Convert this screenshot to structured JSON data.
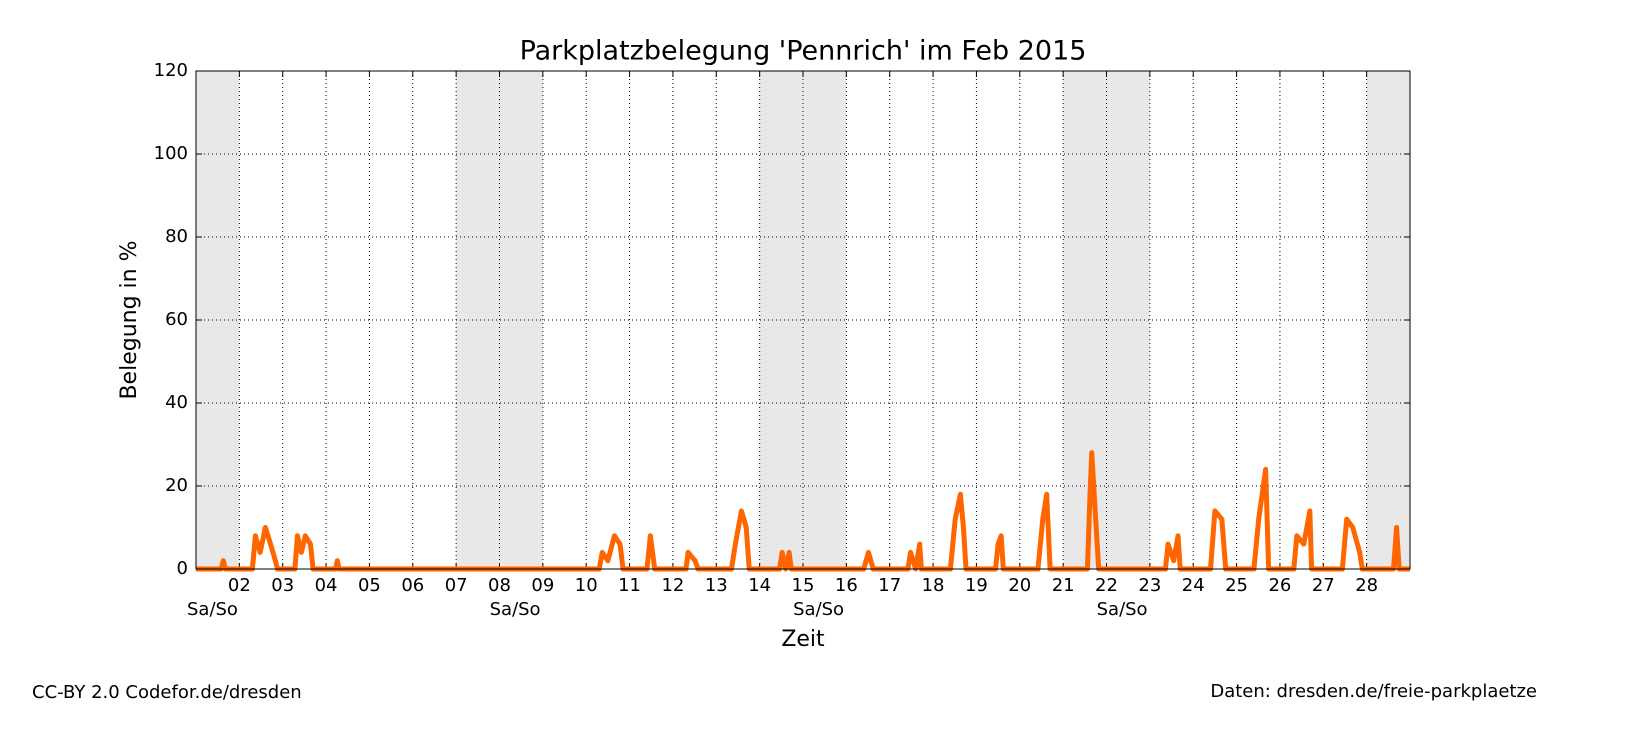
{
  "chart_data": {
    "type": "line",
    "title": "Parkplatzbelegung 'Pennrich' im Feb 2015",
    "xlabel": "Zeit",
    "ylabel": "Belegung in %",
    "footer_left": "CC-BY 2.0 Codefor.de/dresden",
    "footer_right": "Daten: dresden.de/freie-parkplaetze",
    "xlim": [
      1,
      29
    ],
    "ylim": [
      0,
      120
    ],
    "yticks": [
      0,
      20,
      40,
      60,
      80,
      100,
      120
    ],
    "xticks": [
      {
        "value": 2,
        "label": "02"
      },
      {
        "value": 3,
        "label": "03"
      },
      {
        "value": 4,
        "label": "04"
      },
      {
        "value": 5,
        "label": "05"
      },
      {
        "value": 6,
        "label": "06"
      },
      {
        "value": 7,
        "label": "07"
      },
      {
        "value": 8,
        "label": "08"
      },
      {
        "value": 9,
        "label": "09"
      },
      10,
      11,
      12,
      13,
      14,
      15,
      16,
      17,
      18,
      19,
      20,
      21,
      22,
      23,
      24,
      25,
      26,
      27,
      28
    ],
    "grid": true,
    "shaded_spans": [
      [
        1,
        2
      ],
      [
        7,
        9
      ],
      [
        14,
        16
      ],
      [
        21,
        23
      ],
      [
        28,
        29
      ]
    ],
    "shade_color": "#e8e8e8",
    "annotations": [
      {
        "text": "Sa/So",
        "x": 1.38
      },
      {
        "text": "Sa/So",
        "x": 8.36
      },
      {
        "text": "Sa/So",
        "x": 15.36
      },
      {
        "text": "Sa/So",
        "x": 22.36
      }
    ],
    "series": [
      {
        "color": "#ff6600",
        "x": [
          1,
          1.58,
          1.63,
          1.68,
          2.3,
          2.37,
          2.48,
          2.6,
          2.72,
          2.83,
          2.88,
          3.28,
          3.34,
          3.43,
          3.52,
          3.64,
          3.7,
          4.22,
          4.26,
          4.3,
          10.3,
          10.37,
          10.5,
          10.65,
          10.78,
          10.85,
          11.4,
          11.48,
          11.58,
          12.3,
          12.35,
          12.51,
          12.58,
          13.35,
          13.44,
          13.58,
          13.69,
          13.76,
          14.46,
          14.52,
          14.6,
          14.68,
          14.73,
          16.4,
          16.51,
          16.62,
          17.42,
          17.48,
          17.6,
          17.69,
          17.73,
          18.4,
          18.51,
          18.63,
          18.7,
          18.76,
          19.44,
          19.5,
          19.57,
          19.62,
          20.42,
          20.53,
          20.62,
          20.7,
          21.56,
          21.62,
          21.66,
          21.75,
          21.82,
          23.36,
          23.42,
          23.55,
          23.65,
          23.7,
          24.4,
          24.5,
          24.66,
          24.75,
          25.4,
          25.51,
          25.67,
          25.74,
          26.32,
          26.39,
          26.55,
          26.69,
          26.73,
          27.44,
          27.54,
          27.68,
          27.84,
          27.9,
          28.62,
          28.69,
          28.75,
          29
        ],
        "values": [
          0,
          0,
          2,
          0,
          0,
          8,
          4,
          10,
          6,
          2,
          0,
          0,
          8,
          4,
          8,
          6,
          0,
          0,
          2,
          0,
          0,
          4,
          2,
          8,
          6,
          0,
          0,
          8,
          0,
          0,
          4,
          2,
          0,
          0,
          6,
          14,
          10,
          0,
          0,
          4,
          0,
          4,
          0,
          0,
          4,
          0,
          0,
          4,
          0,
          6,
          0,
          0,
          12,
          18,
          10,
          0,
          0,
          6,
          8,
          0,
          0,
          12,
          18,
          0,
          0,
          18,
          28,
          12,
          0,
          0,
          6,
          2,
          8,
          0,
          0,
          14,
          12,
          0,
          0,
          12,
          24,
          0,
          0,
          8,
          6,
          14,
          0,
          0,
          12,
          10,
          4,
          0,
          0,
          10,
          0,
          0
        ]
      }
    ]
  }
}
